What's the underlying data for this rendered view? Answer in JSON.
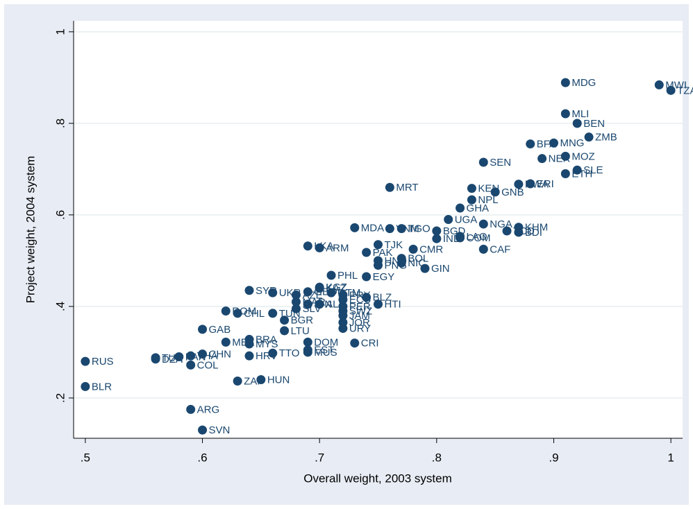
{
  "chart_data": {
    "type": "scatter",
    "x_label": "Overall weight, 2003 system",
    "y_label": "Project weight, 2004 system",
    "color": "#1a476f",
    "grid": true,
    "xlim": [
      0.49,
      1.01
    ],
    "ylim": [
      0.112,
      1.024
    ],
    "xticks": [
      {
        "value": 0.5,
        "label": ".5"
      },
      {
        "value": 0.6,
        "label": ".6"
      },
      {
        "value": 0.7,
        "label": ".7"
      },
      {
        "value": 0.8,
        "label": ".8"
      },
      {
        "value": 0.9,
        "label": ".9"
      },
      1
    ],
    "yticks": [
      {
        "value": 0.2,
        "label": ".2"
      },
      {
        "value": 0.4,
        "label": ".4"
      },
      {
        "value": 0.6,
        "label": ".6"
      },
      {
        "value": 0.8,
        "label": ".8"
      },
      1
    ],
    "labels": [
      "MDG",
      "MWI",
      "TZA",
      "MLI",
      "BEN",
      "ZMB",
      "MNG",
      "BFA",
      "MOZ",
      "NER",
      "SEN",
      "SLE",
      "ETH",
      "ERI",
      "RWA",
      "MRT",
      "KEN",
      "GNB",
      "NPL",
      "GHA",
      "UGA",
      "NGA",
      "KHM",
      "BDI",
      "TCD",
      "MDA",
      "VNM",
      "TGO",
      "BGD",
      "IND",
      "COM",
      "LAO",
      "CAF",
      "LKA",
      "ARM",
      "TJK",
      "CMR",
      "PAK",
      "HND",
      "BOL",
      "NIC",
      "GIN",
      "PNG",
      "PHL",
      "EGY",
      "SYR",
      "KAZ",
      "KGZ",
      "PRY",
      "BLZ",
      "HTI",
      "SWZ",
      "JAM",
      "JOR",
      "URY",
      "UKR",
      "AZE",
      "GEO",
      "MAR",
      "IDN",
      "ALB",
      "GTM",
      "ECU",
      "PER",
      "SLV",
      "TUN",
      "ROM",
      "CHL",
      "BGR",
      "LTU",
      "BRA",
      "MYS",
      "MEX",
      "DOM",
      "CRI",
      "EST",
      "MUS",
      "TTO",
      "HRV",
      "GAB",
      "RUS",
      "BLR",
      "TUR",
      "DZA",
      "PAN",
      "THA",
      "CHN",
      "COL",
      "ZAF",
      "HUN",
      "ARG",
      "SVN"
    ],
    "x": [
      0.91,
      0.99,
      1.0,
      0.91,
      0.92,
      0.93,
      0.9,
      0.88,
      0.91,
      0.89,
      0.84,
      0.92,
      0.91,
      0.88,
      0.87,
      0.76,
      0.83,
      0.85,
      0.83,
      0.82,
      0.81,
      0.84,
      0.87,
      0.87,
      0.86,
      0.73,
      0.76,
      0.77,
      0.8,
      0.8,
      0.82,
      0.82,
      0.84,
      0.69,
      0.7,
      0.75,
      0.78,
      0.74,
      0.75,
      0.77,
      0.77,
      0.79,
      0.75,
      0.71,
      0.74,
      0.64,
      0.7,
      0.7,
      0.72,
      0.74,
      0.75,
      0.72,
      0.72,
      0.72,
      0.72,
      0.66,
      0.68,
      0.69,
      0.68,
      0.69,
      0.7,
      0.71,
      0.72,
      0.72,
      0.68,
      0.66,
      0.62,
      0.63,
      0.67,
      0.67,
      0.64,
      0.64,
      0.62,
      0.69,
      0.73,
      0.69,
      0.69,
      0.66,
      0.64,
      0.6,
      0.5,
      0.5,
      0.56,
      0.56,
      0.58,
      0.59,
      0.6,
      0.59,
      0.63,
      0.65,
      0.59,
      0.6
    ],
    "values": [
      0.889,
      0.884,
      0.872,
      0.821,
      0.8,
      0.77,
      0.757,
      0.755,
      0.728,
      0.723,
      0.715,
      0.698,
      0.69,
      0.668,
      0.667,
      0.66,
      0.658,
      0.65,
      0.633,
      0.615,
      0.59,
      0.58,
      0.573,
      0.562,
      0.565,
      0.572,
      0.57,
      0.57,
      0.565,
      0.548,
      0.55,
      0.553,
      0.525,
      0.532,
      0.528,
      0.535,
      0.525,
      0.518,
      0.5,
      0.505,
      0.495,
      0.483,
      0.49,
      0.468,
      0.465,
      0.435,
      0.44,
      0.442,
      0.425,
      0.42,
      0.405,
      0.39,
      0.38,
      0.365,
      0.352,
      0.43,
      0.425,
      0.432,
      0.41,
      0.405,
      0.405,
      0.43,
      0.415,
      0.4,
      0.395,
      0.385,
      0.39,
      0.385,
      0.37,
      0.347,
      0.328,
      0.318,
      0.322,
      0.322,
      0.32,
      0.305,
      0.3,
      0.298,
      0.292,
      0.35,
      0.28,
      0.225,
      0.288,
      0.285,
      0.29,
      0.292,
      0.296,
      0.272,
      0.237,
      0.24,
      0.175,
      0.13
    ]
  }
}
